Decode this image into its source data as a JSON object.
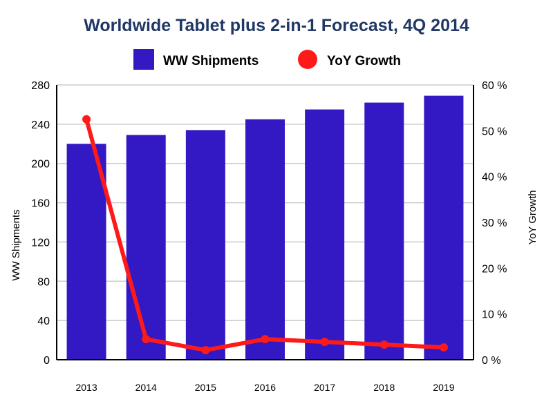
{
  "chart_data": {
    "type": "bar+line",
    "title": "Worldwide Tablet plus 2-in-1 Forecast, 4Q 2014",
    "categories": [
      "2013",
      "2014",
      "2015",
      "2016",
      "2017",
      "2018",
      "2019"
    ],
    "series": [
      {
        "name": "WW Shipments",
        "type": "bar",
        "axis": "left",
        "color": "#3319c4",
        "values": [
          220,
          229,
          234,
          245,
          255,
          262,
          269
        ]
      },
      {
        "name": "YoY Growth",
        "type": "line",
        "axis": "right",
        "color": "#ff1a1a",
        "values": [
          52.5,
          4.5,
          2.1,
          4.5,
          3.9,
          3.3,
          2.7
        ]
      }
    ],
    "ylabel": "WW Shipments",
    "y2label": "YoY Growth",
    "ylim": [
      0,
      280
    ],
    "yticks": [
      "0",
      "40",
      "80",
      "120",
      "160",
      "200",
      "240",
      "280"
    ],
    "y2lim": [
      0,
      60
    ],
    "y2ticks": [
      "0 %",
      "10 %",
      "20 %",
      "30 %",
      "40 %",
      "50 %",
      "60 %"
    ],
    "grid": true,
    "legend": "top-center"
  }
}
